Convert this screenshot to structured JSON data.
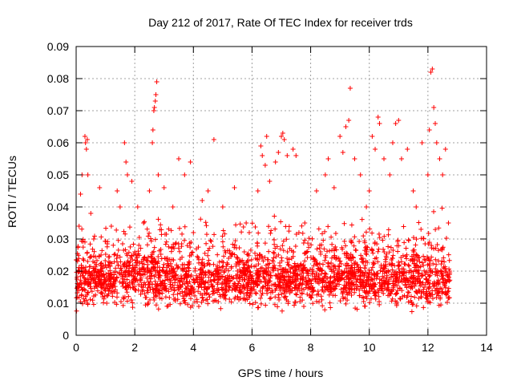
{
  "chart_data": {
    "type": "scatter",
    "title": "Day 212 of 2017, Rate Of TEC Index for receiver trds",
    "xlabel": "GPS time / hours",
    "ylabel": "ROTI / TECUs",
    "xlim": [
      0,
      14
    ],
    "ylim": [
      0,
      0.09
    ],
    "x_ticks": [
      0,
      2,
      4,
      6,
      8,
      10,
      12,
      14
    ],
    "y_ticks": [
      0,
      0.01,
      0.02,
      0.03,
      0.04,
      0.05,
      0.06,
      0.07,
      0.08,
      0.09
    ],
    "x_tick_labels": [
      "0",
      "2",
      "4",
      "6",
      "8",
      "10",
      "12",
      "14"
    ],
    "y_tick_labels": [
      "0",
      "0.01",
      "0.02",
      "0.03",
      "0.04",
      "0.05",
      "0.06",
      "0.07",
      "0.08",
      "0.09"
    ],
    "grid": true,
    "marker": "plus",
    "series_color": "#ff0000",
    "data_time_range_hours": [
      0,
      12.75
    ],
    "series": [
      {
        "name": "ROTI",
        "points": [
          [
            0.05,
            0.015
          ],
          [
            0.1,
            0.034
          ],
          [
            0.15,
            0.044
          ],
          [
            0.2,
            0.05
          ],
          [
            0.25,
            0.021
          ],
          [
            0.3,
            0.062
          ],
          [
            0.32,
            0.06
          ],
          [
            0.35,
            0.058
          ],
          [
            0.38,
            0.061
          ],
          [
            0.4,
            0.05
          ],
          [
            0.5,
            0.038
          ],
          [
            0.6,
            0.03
          ],
          [
            0.8,
            0.046
          ],
          [
            0.9,
            0.012
          ],
          [
            1.0,
            0.022
          ],
          [
            1.2,
            0.034
          ],
          [
            1.4,
            0.045
          ],
          [
            1.5,
            0.04
          ],
          [
            1.65,
            0.06
          ],
          [
            1.7,
            0.054
          ],
          [
            1.75,
            0.05
          ],
          [
            1.9,
            0.048
          ],
          [
            2.0,
            0.026
          ],
          [
            2.1,
            0.04
          ],
          [
            2.3,
            0.035
          ],
          [
            2.5,
            0.045
          ],
          [
            2.6,
            0.06
          ],
          [
            2.62,
            0.064
          ],
          [
            2.65,
            0.07
          ],
          [
            2.67,
            0.071
          ],
          [
            2.7,
            0.073
          ],
          [
            2.72,
            0.075
          ],
          [
            2.75,
            0.079
          ],
          [
            2.8,
            0.05
          ],
          [
            3.0,
            0.046
          ],
          [
            3.3,
            0.04
          ],
          [
            3.5,
            0.055
          ],
          [
            3.7,
            0.05
          ],
          [
            3.9,
            0.054
          ],
          [
            4.0,
            0.032
          ],
          [
            4.3,
            0.042
          ],
          [
            4.5,
            0.045
          ],
          [
            4.7,
            0.061
          ],
          [
            5.0,
            0.04
          ],
          [
            5.4,
            0.046
          ],
          [
            5.8,
            0.035
          ],
          [
            6.2,
            0.045
          ],
          [
            6.3,
            0.059
          ],
          [
            6.35,
            0.056
          ],
          [
            6.45,
            0.053
          ],
          [
            6.5,
            0.062
          ],
          [
            6.6,
            0.048
          ],
          [
            6.8,
            0.054
          ],
          [
            6.9,
            0.057
          ],
          [
            7.0,
            0.062
          ],
          [
            7.05,
            0.063
          ],
          [
            7.1,
            0.061
          ],
          [
            7.2,
            0.056
          ],
          [
            7.4,
            0.058
          ],
          [
            7.5,
            0.056
          ],
          [
            7.6,
            0.032
          ],
          [
            7.8,
            0.035
          ],
          [
            8.0,
            0.012
          ],
          [
            8.2,
            0.045
          ],
          [
            8.5,
            0.05
          ],
          [
            8.6,
            0.055
          ],
          [
            8.8,
            0.046
          ],
          [
            9.0,
            0.062
          ],
          [
            9.1,
            0.057
          ],
          [
            9.2,
            0.065
          ],
          [
            9.3,
            0.067
          ],
          [
            9.35,
            0.077
          ],
          [
            9.5,
            0.055
          ],
          [
            9.7,
            0.05
          ],
          [
            9.9,
            0.04
          ],
          [
            10.0,
            0.045
          ],
          [
            10.1,
            0.062
          ],
          [
            10.2,
            0.058
          ],
          [
            10.3,
            0.068
          ],
          [
            10.35,
            0.066
          ],
          [
            10.5,
            0.055
          ],
          [
            10.7,
            0.05
          ],
          [
            10.8,
            0.06
          ],
          [
            10.9,
            0.066
          ],
          [
            11.0,
            0.067
          ],
          [
            11.1,
            0.055
          ],
          [
            11.3,
            0.058
          ],
          [
            11.5,
            0.045
          ],
          [
            11.6,
            0.04
          ],
          [
            11.8,
            0.06
          ],
          [
            12.0,
            0.05
          ],
          [
            12.05,
            0.064
          ],
          [
            12.1,
            0.082
          ],
          [
            12.15,
            0.083
          ],
          [
            12.2,
            0.071
          ],
          [
            12.25,
            0.066
          ],
          [
            12.3,
            0.06
          ],
          [
            12.4,
            0.055
          ],
          [
            12.5,
            0.05
          ],
          [
            12.6,
            0.058
          ],
          [
            12.7,
            0.035
          ]
        ]
      }
    ]
  }
}
